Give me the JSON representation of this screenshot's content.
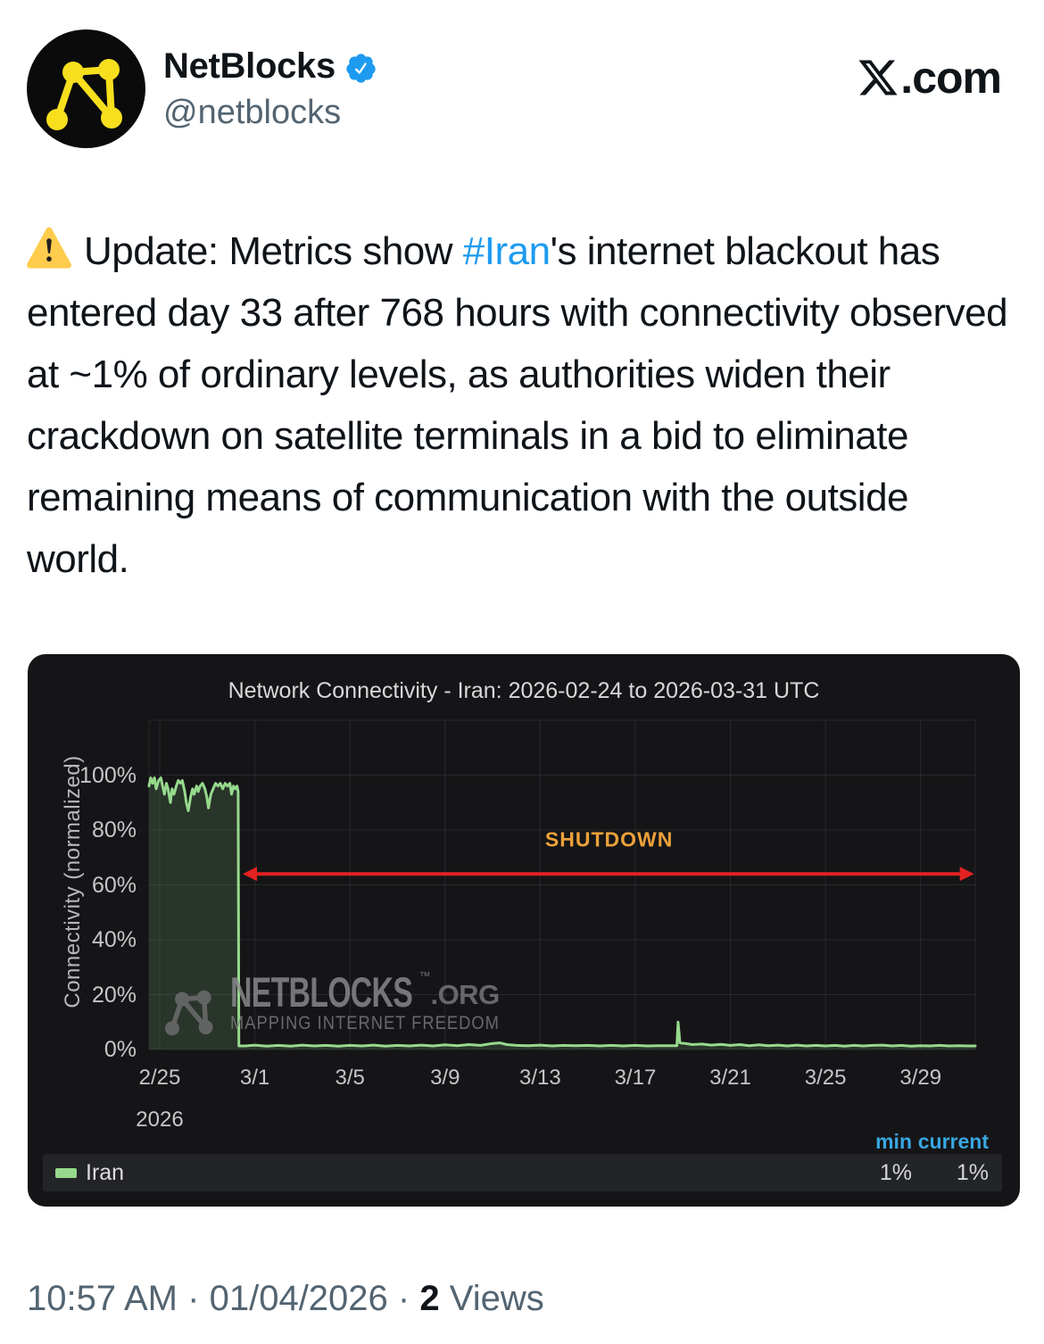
{
  "header": {
    "display_name": "NetBlocks",
    "handle": "@netblocks",
    "site_suffix": ".com"
  },
  "tweet": {
    "prefix": "Update: Metrics show ",
    "hashtag": "#Iran",
    "suffix": "'s internet blackout has entered day 33 after 768 hours with connectivity observed at ~1% of ordinary levels, as authorities widen their crackdown on satellite terminals in a bid to eliminate remaining means of communication with the outside world."
  },
  "chart_data": {
    "type": "area",
    "title": "Network Connectivity - Iran: 2026-02-24 to 2026-03-31 UTC",
    "ylabel": "Connectivity (normalized)",
    "ylim": [
      0,
      120
    ],
    "grid_y": [
      0,
      20,
      40,
      60,
      80,
      100,
      120
    ],
    "xdomain": [
      0.55,
      35.3
    ],
    "x_unit": "days since 2026-02-24",
    "yticks": [
      {
        "label": "100%",
        "value": 100
      },
      {
        "label": "80%",
        "value": 80
      },
      {
        "label": "60%",
        "value": 60
      },
      {
        "label": "40%",
        "value": 40
      },
      {
        "label": "20%",
        "value": 20
      },
      {
        "label": "0%",
        "value": 0
      }
    ],
    "xticks": [
      {
        "label": "2/25",
        "day": 1
      },
      {
        "label": "3/1",
        "day": 5
      },
      {
        "label": "3/5",
        "day": 9
      },
      {
        "label": "3/9",
        "day": 13
      },
      {
        "label": "3/13",
        "day": 17
      },
      {
        "label": "3/17",
        "day": 21
      },
      {
        "label": "3/21",
        "day": 25
      },
      {
        "label": "3/25",
        "day": 29
      },
      {
        "label": "3/29",
        "day": 33
      }
    ],
    "x_secondary_label": {
      "label": "2026",
      "day": 1
    },
    "series": [
      {
        "name": "Iran",
        "color": "#96d98d",
        "fill_opacity": 0.16,
        "points": [
          [
            0.55,
            96
          ],
          [
            0.62,
            99
          ],
          [
            0.7,
            97
          ],
          [
            0.78,
            99
          ],
          [
            0.85,
            95
          ],
          [
            0.95,
            98
          ],
          [
            1.05,
            99
          ],
          [
            1.12,
            96
          ],
          [
            1.2,
            93
          ],
          [
            1.28,
            97
          ],
          [
            1.35,
            95
          ],
          [
            1.45,
            90
          ],
          [
            1.52,
            95
          ],
          [
            1.6,
            93
          ],
          [
            1.7,
            96
          ],
          [
            1.78,
            98
          ],
          [
            1.88,
            97
          ],
          [
            1.95,
            98
          ],
          [
            2.05,
            94
          ],
          [
            2.12,
            90
          ],
          [
            2.2,
            87
          ],
          [
            2.3,
            92
          ],
          [
            2.38,
            95
          ],
          [
            2.45,
            93
          ],
          [
            2.55,
            96
          ],
          [
            2.62,
            94
          ],
          [
            2.7,
            96
          ],
          [
            2.8,
            97
          ],
          [
            2.9,
            95
          ],
          [
            2.98,
            92
          ],
          [
            3.05,
            88
          ],
          [
            3.15,
            93
          ],
          [
            3.25,
            95
          ],
          [
            3.35,
            97
          ],
          [
            3.45,
            96
          ],
          [
            3.55,
            97
          ],
          [
            3.65,
            95
          ],
          [
            3.75,
            97
          ],
          [
            3.85,
            96
          ],
          [
            3.95,
            97
          ],
          [
            4.02,
            93
          ],
          [
            4.1,
            96
          ],
          [
            4.18,
            95
          ],
          [
            4.25,
            96
          ],
          [
            4.3,
            94
          ],
          [
            4.33,
            1.3
          ],
          [
            4.6,
            1.3
          ],
          [
            5.0,
            1.6
          ],
          [
            5.5,
            1.2
          ],
          [
            6.0,
            1.5
          ],
          [
            6.5,
            1.2
          ],
          [
            7.0,
            1.6
          ],
          [
            7.5,
            1.3
          ],
          [
            8.0,
            1.5
          ],
          [
            8.5,
            1.2
          ],
          [
            9.0,
            1.5
          ],
          [
            9.5,
            1.3
          ],
          [
            10.0,
            1.6
          ],
          [
            10.5,
            1.2
          ],
          [
            11.0,
            1.5
          ],
          [
            11.5,
            1.3
          ],
          [
            12.0,
            1.6
          ],
          [
            12.5,
            1.3
          ],
          [
            13.0,
            1.7
          ],
          [
            13.5,
            1.4
          ],
          [
            14.0,
            1.8
          ],
          [
            14.5,
            1.5
          ],
          [
            15.0,
            2.2
          ],
          [
            15.3,
            2.4
          ],
          [
            15.6,
            1.8
          ],
          [
            16.0,
            1.5
          ],
          [
            16.5,
            1.4
          ],
          [
            17.0,
            1.6
          ],
          [
            17.5,
            1.3
          ],
          [
            18.0,
            1.5
          ],
          [
            18.5,
            1.4
          ],
          [
            19.0,
            1.5
          ],
          [
            19.5,
            1.3
          ],
          [
            20.0,
            1.5
          ],
          [
            20.5,
            1.3
          ],
          [
            21.0,
            1.5
          ],
          [
            21.5,
            1.3
          ],
          [
            22.0,
            1.4
          ],
          [
            22.4,
            1.4
          ],
          [
            22.75,
            1.4
          ],
          [
            22.8,
            10
          ],
          [
            22.88,
            2.4
          ],
          [
            23.1,
            2.2
          ],
          [
            23.4,
            1.8
          ],
          [
            23.8,
            2.0
          ],
          [
            24.2,
            1.6
          ],
          [
            24.6,
            1.9
          ],
          [
            25.0,
            1.5
          ],
          [
            25.4,
            1.8
          ],
          [
            25.8,
            1.4
          ],
          [
            26.2,
            1.7
          ],
          [
            26.6,
            1.4
          ],
          [
            27.0,
            1.6
          ],
          [
            27.4,
            1.3
          ],
          [
            27.8,
            1.6
          ],
          [
            28.2,
            1.3
          ],
          [
            28.6,
            1.5
          ],
          [
            29.0,
            1.3
          ],
          [
            29.4,
            1.5
          ],
          [
            29.8,
            1.2
          ],
          [
            30.2,
            1.5
          ],
          [
            30.6,
            1.3
          ],
          [
            31.0,
            1.5
          ],
          [
            31.4,
            1.6
          ],
          [
            31.8,
            1.3
          ],
          [
            32.2,
            1.5
          ],
          [
            32.6,
            1.2
          ],
          [
            33.0,
            1.4
          ],
          [
            33.4,
            1.3
          ],
          [
            33.8,
            1.5
          ],
          [
            34.2,
            1.3
          ],
          [
            34.6,
            1.4
          ],
          [
            35.0,
            1.3
          ],
          [
            35.3,
            1.3
          ]
        ]
      }
    ],
    "annotation": {
      "label": "SHUTDOWN",
      "label_color": "#eda13a",
      "arrow_color": "#e32222",
      "arrow_y_value": 64,
      "arrow_day_start": 4.49,
      "arrow_day_end": 35.25,
      "label_day": 19.9,
      "label_y_value": 74
    },
    "legend": {
      "columns": [
        "min",
        "current"
      ],
      "rows": [
        {
          "label": "Iran",
          "swatch_color": "#96d98d",
          "min": "1%",
          "current": "1%"
        }
      ]
    },
    "watermark": {
      "line1": "NETBLOCKS",
      "tm": "™",
      "line1_suffix": ".ORG",
      "line2": "MAPPING INTERNET FREEDOM"
    },
    "colors": {
      "panel_bg": "#151517",
      "grid": "rgba(210,216,222,0.10)",
      "series_green": "#96d98d",
      "legend_header_blue": "#38a7e2"
    }
  },
  "footer": {
    "time": "10:57 AM",
    "separator": "·",
    "date": "01/04/2026",
    "views_count": "2",
    "views_label": "Views"
  }
}
